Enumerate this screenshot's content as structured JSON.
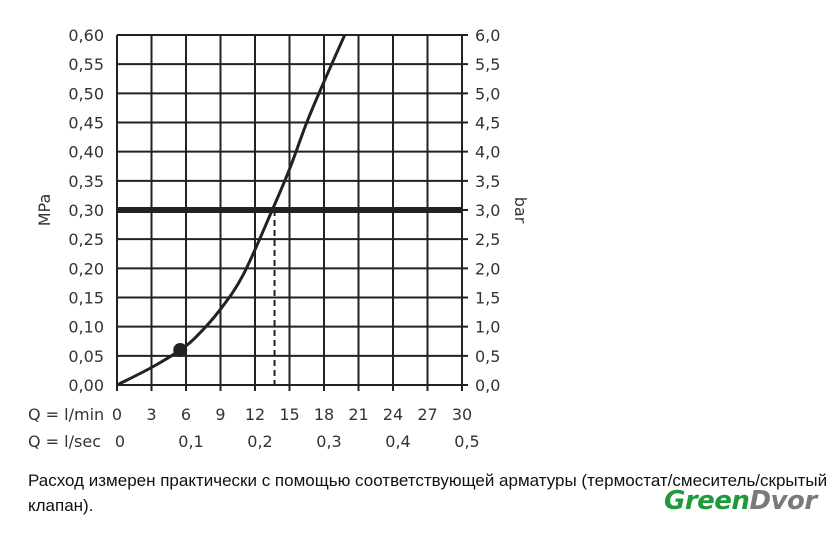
{
  "chart_data": {
    "type": "line",
    "title": "",
    "ylabel": "MPa",
    "ylabel_right": "bar",
    "ylim": [
      0,
      0.6
    ],
    "ylim_right": [
      0,
      6.0
    ],
    "xlim": [
      0,
      30
    ],
    "grid": true,
    "yticks": [
      "0,00",
      "0,05",
      "0,10",
      "0,15",
      "0,20",
      "0,25",
      "0,30",
      "0,35",
      "0,40",
      "0,45",
      "0,50",
      "0,55",
      "0,60"
    ],
    "yticks_right": [
      "0,0",
      "0,5",
      "1,0",
      "1,5",
      "2,0",
      "2,5",
      "3,0",
      "3,5",
      "4,0",
      "4,5",
      "5,0",
      "5,5",
      "6,0"
    ],
    "x_axis_label": "Q = l/min",
    "xticks": [
      "0",
      "3",
      "6",
      "9",
      "12",
      "15",
      "18",
      "21",
      "24",
      "27",
      "30"
    ],
    "x2_axis_label": "Q = l/sec",
    "x2ticks": [
      {
        "value": 0,
        "label": "0"
      },
      {
        "value": 6,
        "label": "0,1"
      },
      {
        "value": 12,
        "label": "0,2"
      },
      {
        "value": 18,
        "label": "0,3"
      },
      {
        "value": 24,
        "label": "0,4"
      },
      {
        "value": 30,
        "label": "0,5"
      }
    ],
    "series": [
      {
        "x": [
          0,
          3,
          5.5,
          7,
          9,
          11,
          13.5,
          15,
          16.5,
          18,
          19.8
        ],
        "y": [
          0,
          0.03,
          0.06,
          0.085,
          0.13,
          0.19,
          0.3,
          0.37,
          0.45,
          0.52,
          0.6
        ]
      }
    ],
    "marker_point": {
      "x": 5.5,
      "y": 0.06
    },
    "reference_line_y": 0.3,
    "reference_dashed_x": 13.7,
    "color": "#222222"
  },
  "caption": "Расход измерен практически с помощью соответствующей арматуры (термостат/смеситель/скрытый клапан).",
  "watermark": {
    "green": "Green",
    "gray": "Dvor",
    "green_color": "#1e9a3c",
    "gray_color": "#7a7a7a"
  }
}
